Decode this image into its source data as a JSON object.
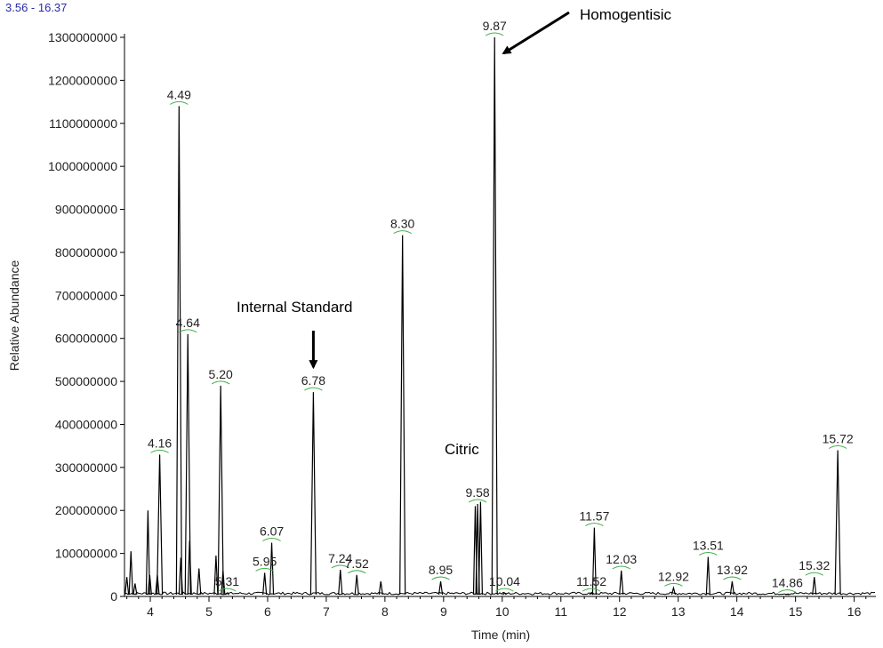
{
  "chart_data": {
    "type": "line",
    "range_label": "3.56 - 16.37",
    "xlabel": "Time (min)",
    "ylabel": "Relative Abundance",
    "xlim": [
      3.56,
      16.37
    ],
    "ylim": [
      0,
      1300000000
    ],
    "x_ticks": [
      "4",
      "5",
      "6",
      "7",
      "8",
      "9",
      "10",
      "11",
      "12",
      "13",
      "14",
      "15",
      "16"
    ],
    "y_ticks": [
      "0",
      "100000000",
      "200000000",
      "300000000",
      "400000000",
      "500000000",
      "600000000",
      "700000000",
      "800000000",
      "900000000",
      "1000000000",
      "1100000000",
      "1200000000",
      "1300000000"
    ],
    "grid": false,
    "legend": "none",
    "baseline": 4000000,
    "peaks": [
      {
        "rt": 3.6,
        "height": 45000000,
        "label": ""
      },
      {
        "rt": 3.67,
        "height": 105000000,
        "label": ""
      },
      {
        "rt": 3.74,
        "height": 30000000,
        "label": ""
      },
      {
        "rt": 3.96,
        "height": 200000000,
        "label": ""
      },
      {
        "rt": 3.99,
        "height": 50000000,
        "label": ""
      },
      {
        "rt": 4.12,
        "height": 50000000,
        "label": ""
      },
      {
        "rt": 4.16,
        "height": 330000000,
        "label": "4.16"
      },
      {
        "rt": 4.49,
        "height": 1140000000,
        "label": "4.49"
      },
      {
        "rt": 4.52,
        "height": 90000000,
        "label": ""
      },
      {
        "rt": 4.64,
        "height": 610000000,
        "label": "4.64"
      },
      {
        "rt": 4.67,
        "height": 130000000,
        "label": ""
      },
      {
        "rt": 4.83,
        "height": 65000000,
        "label": ""
      },
      {
        "rt": 5.12,
        "height": 95000000,
        "label": ""
      },
      {
        "rt": 5.2,
        "height": 490000000,
        "label": "5.20"
      },
      {
        "rt": 5.24,
        "height": 60000000,
        "label": ""
      },
      {
        "rt": 5.31,
        "height": 8000000,
        "label": "5.31"
      },
      {
        "rt": 5.95,
        "height": 55000000,
        "label": "5.95"
      },
      {
        "rt": 6.07,
        "height": 125000000,
        "label": "6.07"
      },
      {
        "rt": 6.78,
        "height": 475000000,
        "label": "6.78"
      },
      {
        "rt": 7.24,
        "height": 62000000,
        "label": "7.24"
      },
      {
        "rt": 7.52,
        "height": 50000000,
        "label": "7.52"
      },
      {
        "rt": 7.93,
        "height": 35000000,
        "label": ""
      },
      {
        "rt": 8.3,
        "height": 840000000,
        "label": "8.30"
      },
      {
        "rt": 8.95,
        "height": 35000000,
        "label": "8.95"
      },
      {
        "rt": 9.54,
        "height": 210000000,
        "label": ""
      },
      {
        "rt": 9.58,
        "height": 215000000,
        "label": "9.58"
      },
      {
        "rt": 9.63,
        "height": 220000000,
        "label": ""
      },
      {
        "rt": 9.87,
        "height": 1300000000,
        "label": "9.87"
      },
      {
        "rt": 10.04,
        "height": 8000000,
        "label": "10.04"
      },
      {
        "rt": 11.52,
        "height": 8000000,
        "label": "11.52"
      },
      {
        "rt": 11.57,
        "height": 160000000,
        "label": "11.57"
      },
      {
        "rt": 12.03,
        "height": 60000000,
        "label": "12.03"
      },
      {
        "rt": 12.92,
        "height": 20000000,
        "label": "12.92"
      },
      {
        "rt": 13.51,
        "height": 92000000,
        "label": "13.51"
      },
      {
        "rt": 13.92,
        "height": 35000000,
        "label": "13.92"
      },
      {
        "rt": 14.86,
        "height": 5000000,
        "label": "14.86"
      },
      {
        "rt": 15.32,
        "height": 45000000,
        "label": "15.32"
      },
      {
        "rt": 15.72,
        "height": 340000000,
        "label": "15.72"
      }
    ],
    "annotations": [
      {
        "text": "Homogentisic",
        "target_rt": 9.87
      },
      {
        "text": "Internal Standard",
        "target_rt": 6.78
      },
      {
        "text": "Citric",
        "target_rt": 9.58
      }
    ]
  }
}
